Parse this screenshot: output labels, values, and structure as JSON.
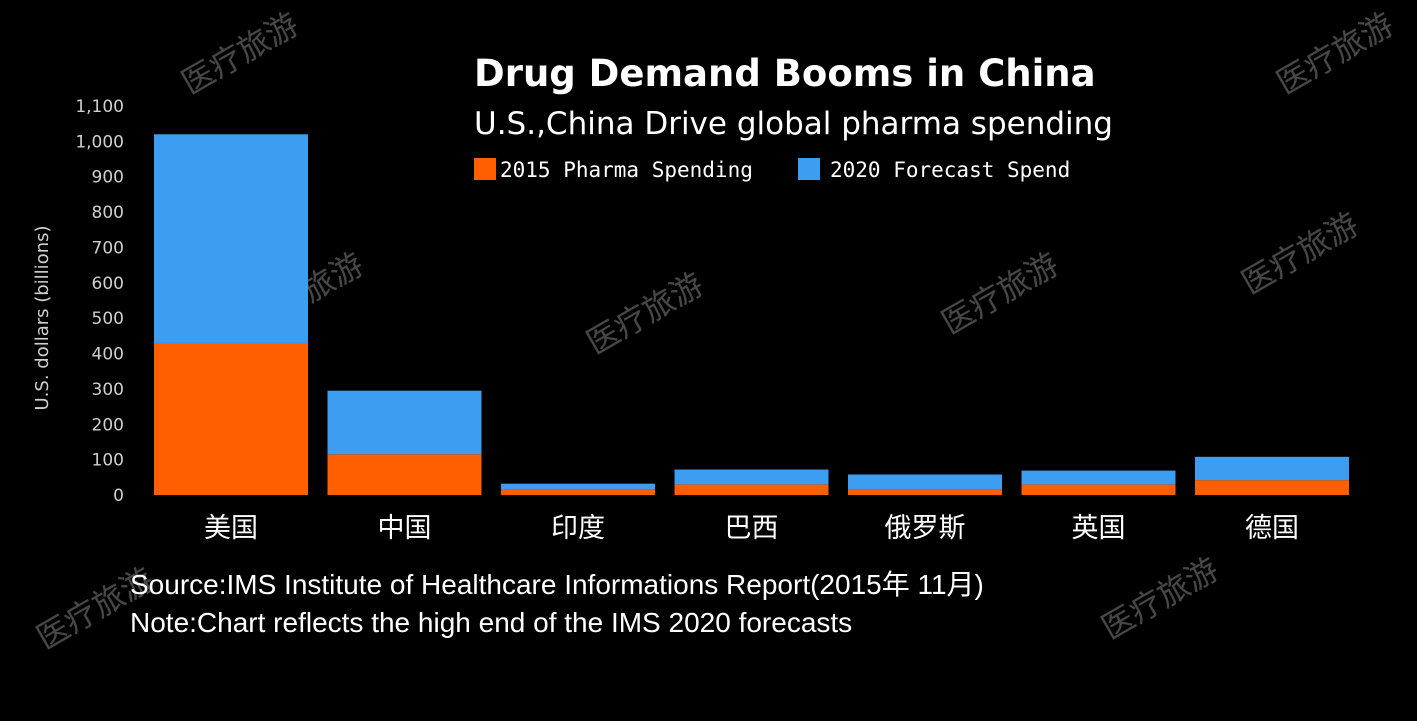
{
  "colors": {
    "background": "#000000",
    "series_2015": "#ff5f00",
    "series_2020": "#3d9df0"
  },
  "watermark": "医疗旅游",
  "footer": {
    "source": "Source:IMS Institute of Healthcare Informations Report(2015年 11月)",
    "note": "Note:Chart reflects the high end of the IMS 2020 forecasts"
  },
  "chart_data": {
    "type": "bar",
    "stacked": true,
    "title": "Drug Demand Booms in China",
    "subtitle": "U.S.,China Drive global pharma spending",
    "xlabel": "",
    "ylabel": "U.S. dollars (billions)",
    "ylim": [
      0,
      1100
    ],
    "yticks": [
      0,
      100,
      200,
      300,
      400,
      500,
      600,
      700,
      800,
      900,
      1000,
      1100
    ],
    "ytick_labels": [
      "0",
      "100",
      "200",
      "300",
      "400",
      "500",
      "600",
      "700",
      "800",
      "900",
      "1,000",
      "1,100"
    ],
    "categories": [
      "美国",
      "中国",
      "印度",
      "巴西",
      "俄罗斯",
      "英国",
      "德国"
    ],
    "series": [
      {
        "name": "2015 Pharma Spending",
        "values": [
          430,
          115,
          15,
          30,
          15,
          30,
          42
        ]
      },
      {
        "name": "2020 Forecast Spend",
        "values": [
          590,
          180,
          17,
          42,
          43,
          39,
          66
        ]
      }
    ],
    "legend": "top"
  }
}
